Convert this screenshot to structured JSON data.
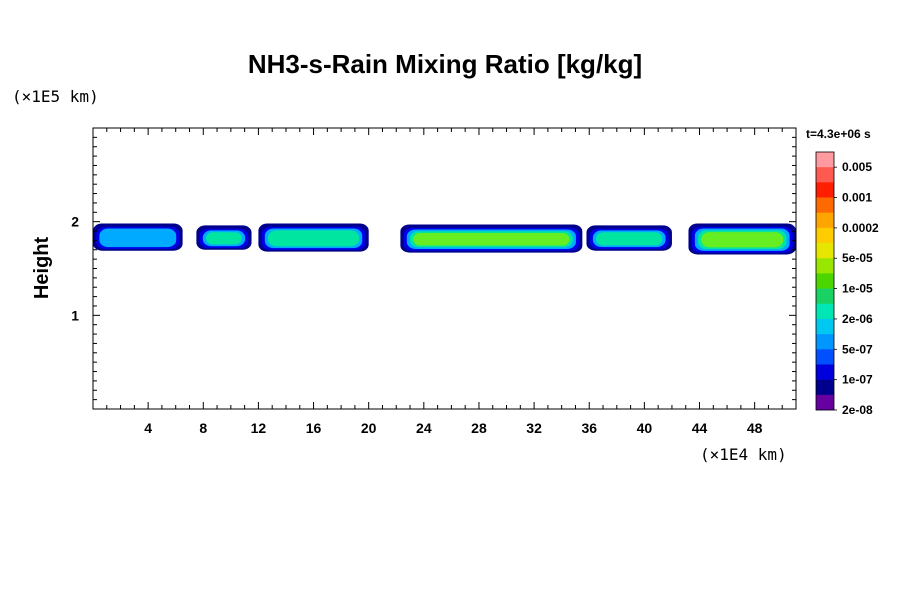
{
  "chart_data": {
    "type": "heatmap",
    "title": "NH3-s-Rain Mixing Ratio [kg/kg]",
    "ylabel": "Height",
    "x_unit": "(×1E4 km)",
    "y_unit": "(×1E5 km)",
    "time_label": "t=4.3e+06 s",
    "xlim": [
      0,
      51
    ],
    "ylim": [
      0,
      3
    ],
    "x_ticks": [
      "4",
      "8",
      "12",
      "16",
      "20",
      "24",
      "28",
      "32",
      "36",
      "40",
      "44",
      "48"
    ],
    "y_ticks": [
      "1",
      "2"
    ],
    "colorbar": {
      "labels": [
        "0.005",
        "0.001",
        "0.0002",
        "5e-05",
        "1e-05",
        "2e-06",
        "5e-07",
        "1e-07",
        "2e-08"
      ],
      "colors_top_to_bottom": [
        "#ff9aa0",
        "#ff5a50",
        "#ff1e00",
        "#ff6a00",
        "#ffa500",
        "#ffcc00",
        "#e6e600",
        "#99e600",
        "#4cd600",
        "#19d264",
        "#00e6b4",
        "#00c8f0",
        "#0096ff",
        "#0050ff",
        "#0000dc",
        "#00008c",
        "#6600a0"
      ]
    },
    "levels": [
      "2e-08",
      "1e-07",
      "5e-07",
      "2e-06",
      "1e-05"
    ],
    "level_colors": [
      "#00008c",
      "#0000e6",
      "#00aaff",
      "#00e6a0",
      "#66ee22"
    ],
    "blobs": [
      {
        "x0": 0,
        "x1": 6.5,
        "y0": 1.69,
        "y1": 1.98,
        "core": 2
      },
      {
        "x0": 7.5,
        "x1": 11.5,
        "y0": 1.7,
        "y1": 1.96,
        "core": 3
      },
      {
        "x0": 12,
        "x1": 20,
        "y0": 1.68,
        "y1": 1.98,
        "core": 3
      },
      {
        "x0": 22.3,
        "x1": 35.5,
        "y0": 1.67,
        "y1": 1.97,
        "core": 4
      },
      {
        "x0": 35.8,
        "x1": 42,
        "y0": 1.69,
        "y1": 1.96,
        "core": 3
      },
      {
        "x0": 43.2,
        "x1": 51,
        "y0": 1.65,
        "y1": 1.98,
        "core": 4
      }
    ]
  }
}
